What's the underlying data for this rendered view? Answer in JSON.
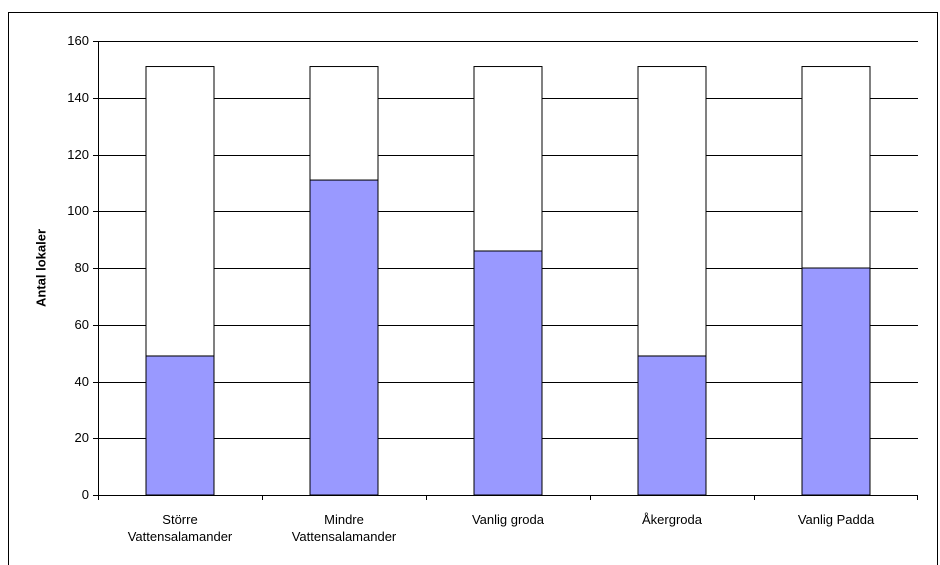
{
  "chart_data": {
    "type": "stacked_bar",
    "y_label": "Antal lokaler",
    "categories": [
      "Större\nVattensalamander",
      "Mindre\nVattensalamander",
      "Vanlig groda",
      "Åkergroda",
      "Vanlig Padda"
    ],
    "series": [
      {
        "color": "#9999ff",
        "values": [
          49,
          111,
          86,
          49,
          80
        ]
      },
      {
        "color": "#ffffff",
        "values": [
          102,
          40,
          65,
          102,
          71
        ]
      }
    ],
    "ylim": [
      0,
      160
    ],
    "yticks": [
      0,
      20,
      40,
      60,
      80,
      100,
      120,
      140,
      160
    ],
    "grid": true
  }
}
